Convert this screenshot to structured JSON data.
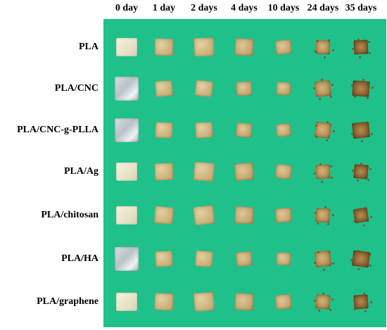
{
  "columns": [
    "0 day",
    "1 day",
    "2 days",
    "4 days",
    "10 days",
    "24 days",
    "35 days"
  ],
  "rows": [
    "PLA",
    "PLA/CNC",
    "PLA/CNC-g-PLLA",
    "PLA/Ag",
    "PLA/chitosan",
    "PLA/HA",
    "PLA/graphene"
  ],
  "colors": {
    "background": "#20c08a",
    "intact_sample": "#f2efd8",
    "degraded_sample": "#c9ae78",
    "heavily_degraded_sample": "#8e6634"
  }
}
